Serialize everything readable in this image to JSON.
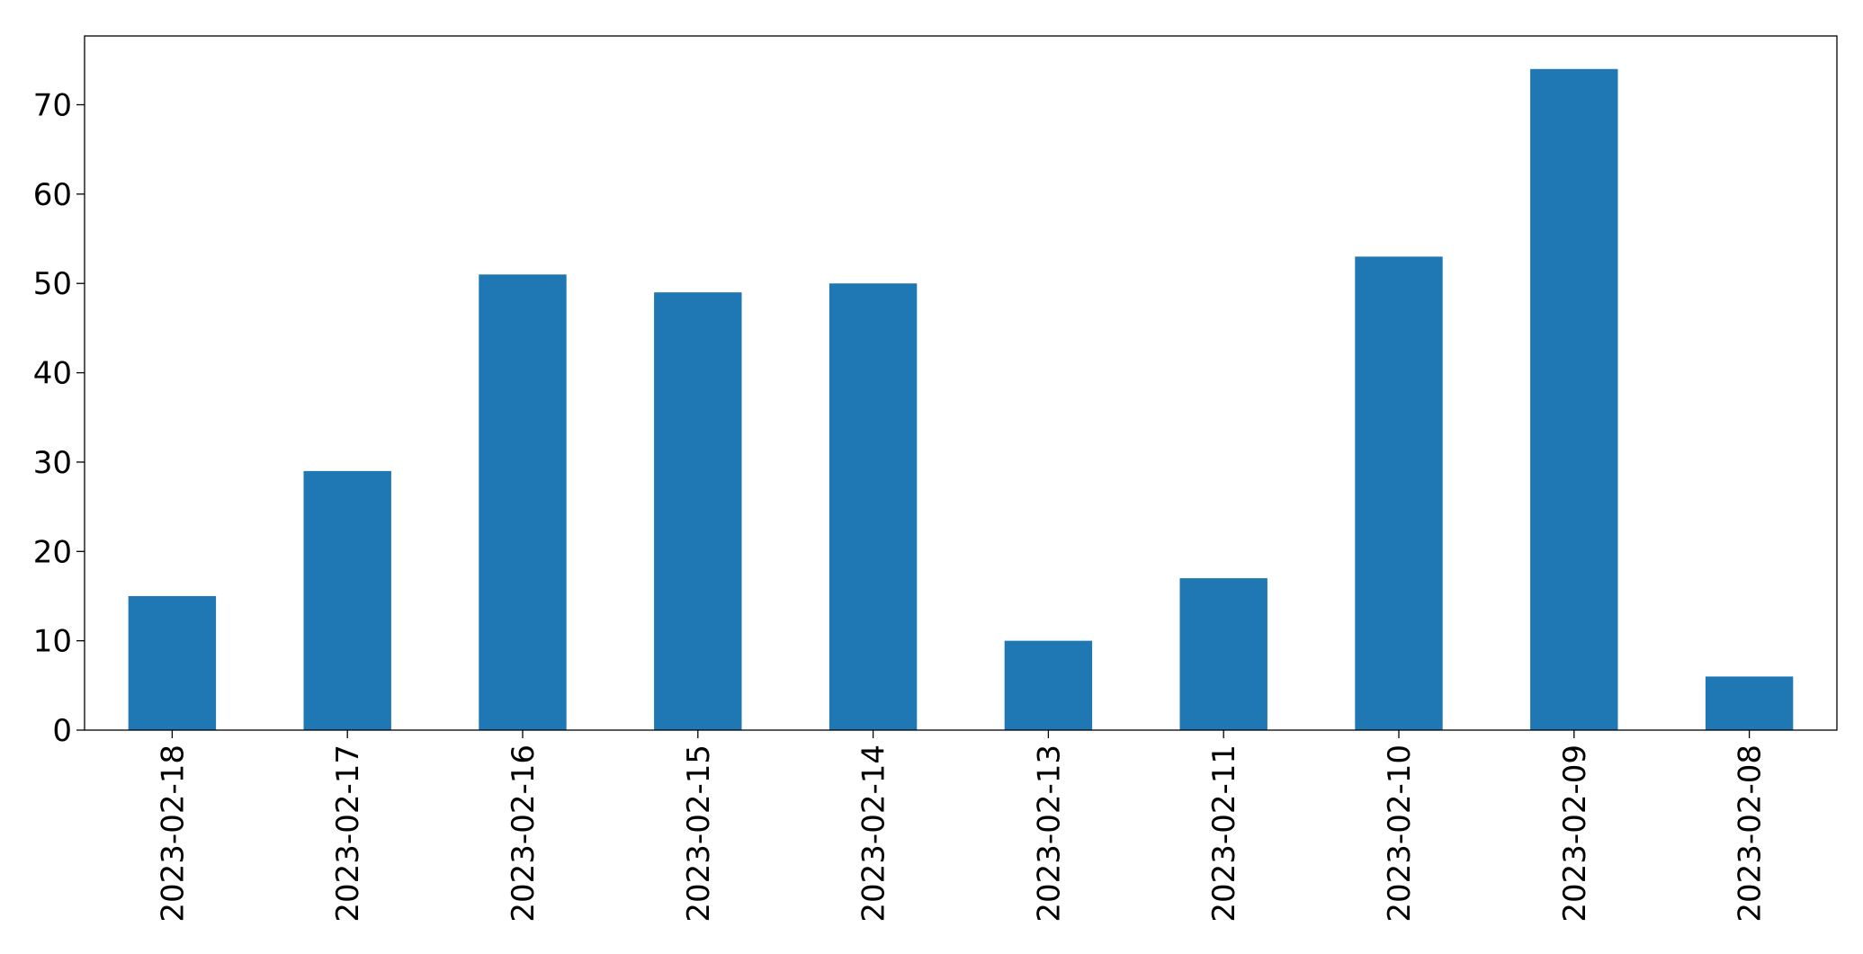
{
  "chart_data": {
    "type": "bar",
    "categories": [
      "2023-02-18",
      "2023-02-17",
      "2023-02-16",
      "2023-02-15",
      "2023-02-14",
      "2023-02-13",
      "2023-02-11",
      "2023-02-10",
      "2023-02-09",
      "2023-02-08"
    ],
    "values": [
      15,
      29,
      51,
      49,
      50,
      10,
      17,
      53,
      74,
      6
    ],
    "color": "#1f77b4",
    "ylim": [
      0,
      77.7
    ],
    "yticks": [
      0,
      10,
      20,
      30,
      40,
      50,
      60,
      70
    ],
    "grid": false
  }
}
